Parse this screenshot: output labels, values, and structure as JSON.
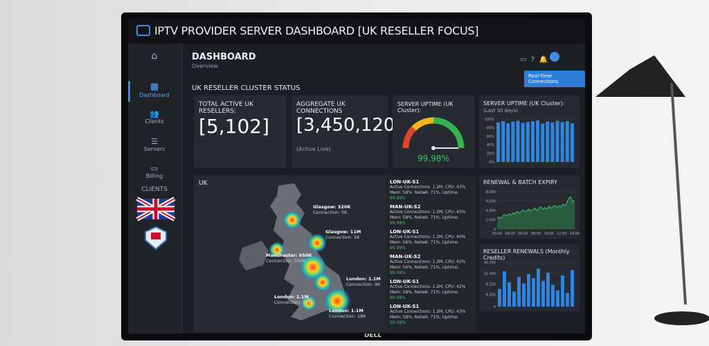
{
  "header": {
    "title": "IPTV PROVIDER SERVER DASHBOARD [UK RESELLER FOCUS]"
  },
  "sidebar": {
    "items": [
      "Dashboard",
      "Clients",
      "Servers",
      "Billing"
    ],
    "section": "CLIENTS"
  },
  "page": {
    "title": "DASHBOARD",
    "subtitle": "Overview",
    "button": "Real-Time Connections",
    "section": "UK RESELLER CLUSTER STATUS"
  },
  "cards": {
    "resellers": {
      "label": "TOTAL ACTIVE UK RESELLERS:",
      "value": "[5,102]"
    },
    "connections": {
      "label": "AGGREGATE UK CONNECTIONS",
      "value": "[3,450,120]",
      "note": "(Active Live)"
    },
    "gauge": {
      "label": "SERVER UPTIME (UK Cluster):",
      "value": 99.98,
      "value_label": "99.98%",
      "min": 0,
      "max": 100
    }
  },
  "uptime_chart": {
    "title": "SERVER UPTIME (UK Cluster):",
    "subtitle": "(Last 30 days)",
    "values": [
      92,
      95,
      90,
      94,
      96,
      91,
      93,
      95,
      97,
      89,
      94,
      92,
      96,
      93,
      95,
      90
    ],
    "ylim": [
      0,
      100
    ],
    "yticks": [
      {
        "value": 0,
        "label": "0%"
      },
      {
        "value": 20,
        "label": "20%"
      },
      {
        "value": 40,
        "label": "40%"
      },
      {
        "value": 60,
        "label": "60%"
      },
      {
        "value": 80,
        "label": "80%"
      },
      {
        "value": 100,
        "label": "100%"
      }
    ]
  },
  "map": {
    "title": "UK",
    "labels": [
      {
        "city": "Glasgow: 320K",
        "conn": "Connection: 5K"
      },
      {
        "city": "Glasgow: 11M",
        "conn": "Connection: 5K"
      },
      {
        "city": "Manchester: 650K",
        "conn": "Connection: 550K"
      },
      {
        "city": "London: 1.1M",
        "conn": "Connection: 9K"
      },
      {
        "city": "London: 1.1M",
        "conn": "Connection: 11M"
      },
      {
        "city": "London: 1.1M",
        "conn": "Connection: 18K"
      }
    ]
  },
  "servers": [
    {
      "name": "LON-UK-S1",
      "line1": "Active Connections: 1.2M, CPU: 43%",
      "line2": "Mem: 58%, Netwk: 71%, Uptime:",
      "uptime": "99.99%"
    },
    {
      "name": "MAN-UK-S2",
      "line1": "Active Connections: 1.2M, CPU: 45%",
      "line2": "Mem: 58%, Netwk: 71%, Uptime:",
      "uptime": "99.99%"
    },
    {
      "name": "LON-UK-S1",
      "line1": "Active Connections: 1.2M, CPU: 40%",
      "line2": "Mem: 56%, Netwk: 71%, Uptime:",
      "uptime": "99.99%"
    },
    {
      "name": "MAN-UK-S2",
      "line1": "Active Connections: 1.2M, CPU: 42%",
      "line2": "Mem: 56%, Netwk: 71%, Uptime:",
      "uptime": "99.99%"
    },
    {
      "name": "LON-UK-S1",
      "line1": "Active Connections: 1.2M, CPU: 42%",
      "line2": "Mem: 58%, Netwk: 71%, Uptime:",
      "uptime": "99.99%"
    },
    {
      "name": "LON-UK-S1",
      "line1": "Active Connections: 1.2M, CPU: 43%",
      "line2": "Mem: 58%, Netwk: 71%, Uptime:",
      "uptime": "99.99%"
    }
  ],
  "renewal_chart": {
    "title": "RENEWAL & BATCH EXPIRY",
    "values": [
      2400,
      2600,
      2300,
      2900,
      3100,
      2800,
      3300,
      3000,
      3500,
      3200,
      3800,
      3400,
      3600,
      4100,
      3700,
      3900,
      4300,
      3800,
      4200,
      4500,
      4000,
      4400,
      4800,
      4200,
      4600,
      4300,
      4900,
      4500,
      4700,
      5100,
      4600,
      5000,
      4800,
      5300,
      5000,
      5600,
      6600,
      6900,
      5800,
      6200
    ],
    "ylim": [
      0,
      8000
    ],
    "yticks": [
      0,
      {
        "value": 2000,
        "label": "2,000"
      },
      {
        "value": 4000,
        "label": "4,000"
      },
      {
        "value": 6000,
        "label": "6,000"
      },
      {
        "value": 8000,
        "label": "8,000"
      }
    ],
    "xlabels": [
      "00:00",
      "04:00",
      "06:00",
      "08:00",
      "10:00",
      "12:00",
      "14:00"
    ]
  },
  "renewals_chart": {
    "title": "RESELLER RENEWALS (Monthly Credits)",
    "values": [
      6500,
      13000,
      9000,
      5500,
      11000,
      8500,
      12000,
      10500,
      14000,
      9500,
      12500,
      8000,
      6000,
      11500,
      5000,
      13500
    ],
    "ylim": [
      0,
      16350
    ],
    "yticks": [
      0,
      {
        "value": 4500,
        "label": "4,500"
      },
      {
        "value": 8250,
        "label": "8,250"
      },
      {
        "value": 12300,
        "label": "12,300"
      },
      {
        "value": 16350,
        "label": "16,350"
      }
    ]
  }
}
